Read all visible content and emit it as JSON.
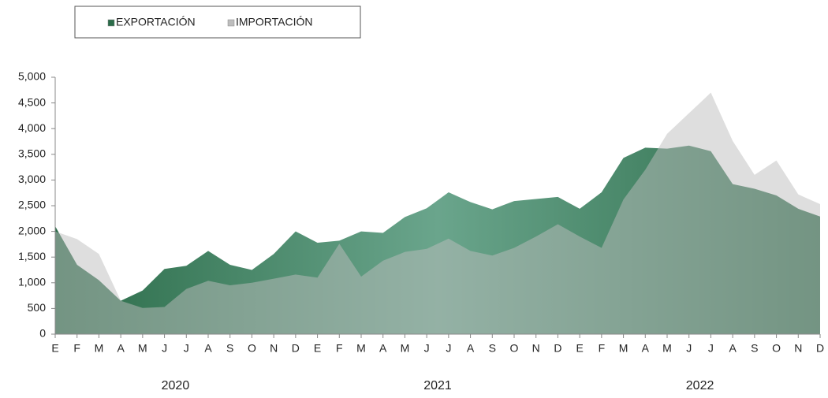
{
  "chart_data": {
    "type": "area",
    "categories": [
      "E",
      "F",
      "M",
      "A",
      "M",
      "J",
      "J",
      "A",
      "S",
      "O",
      "N",
      "D",
      "E",
      "F",
      "M",
      "A",
      "M",
      "J",
      "J",
      "A",
      "S",
      "O",
      "N",
      "D",
      "E",
      "F",
      "M",
      "A",
      "M",
      "J",
      "J",
      "A",
      "S",
      "O",
      "N",
      "D"
    ],
    "year_labels": [
      "2020",
      "2021",
      "2022"
    ],
    "series": [
      {
        "name": "EXPORTACIÓN",
        "color": "#2a6b48",
        "values": [
          2100,
          1350,
          1050,
          650,
          850,
          1270,
          1330,
          1620,
          1350,
          1250,
          1560,
          2000,
          1780,
          1820,
          2000,
          1970,
          2280,
          2450,
          2760,
          2570,
          2430,
          2590,
          2630,
          2670,
          2440,
          2760,
          3430,
          3630,
          3610,
          3670,
          3560,
          2920,
          2830,
          2700,
          2440,
          2290
        ]
      },
      {
        "name": "IMPORTACIÓN",
        "color": "#bdbdbd",
        "values": [
          2000,
          1850,
          1560,
          650,
          510,
          530,
          880,
          1040,
          950,
          1000,
          1080,
          1160,
          1100,
          1760,
          1120,
          1430,
          1600,
          1660,
          1860,
          1620,
          1530,
          1680,
          1900,
          2140,
          1900,
          1680,
          2620,
          3200,
          3900,
          4300,
          4700,
          3760,
          3100,
          3380,
          2720,
          2530
        ]
      }
    ],
    "ylim": [
      0,
      5000
    ],
    "yticks": [
      0,
      500,
      {
        "value": 1000,
        "label": "1,000"
      },
      {
        "value": 1500,
        "label": "1,500"
      },
      {
        "value": 2000,
        "label": "2,000"
      },
      {
        "value": 2500,
        "label": "2,500"
      },
      {
        "value": 3000,
        "label": "3,000"
      },
      {
        "value": 3500,
        "label": "3,500"
      },
      {
        "value": 4000,
        "label": "4,000"
      },
      {
        "value": 4500,
        "label": "4,500"
      },
      {
        "value": 5000,
        "label": "5,000"
      }
    ]
  }
}
